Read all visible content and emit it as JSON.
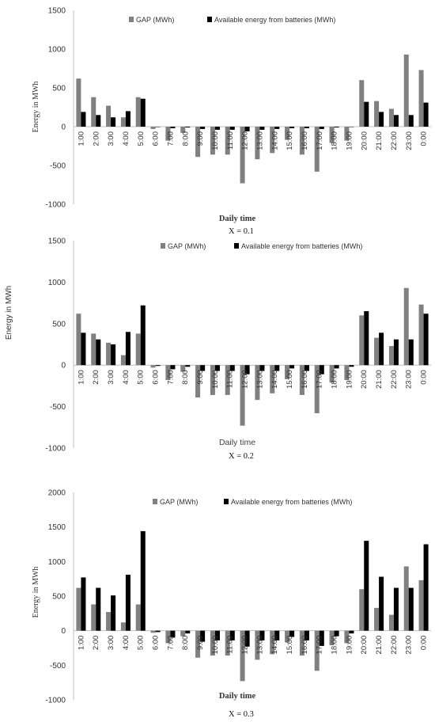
{
  "chart_data": [
    {
      "type": "bar",
      "categories": [
        "1:00",
        "2:00",
        "3:00",
        "4:00",
        "5:00",
        "6:00",
        "7:00",
        "8:00",
        "9:00",
        "10:00",
        "11:00",
        "12:00",
        "13:00",
        "14:00",
        "15:00",
        "16:00",
        "17:00",
        "18:00",
        "19:00",
        "20:00",
        "21:00",
        "22:00",
        "23:00",
        "0:00"
      ],
      "series": [
        {
          "name": "GAP (MWh)",
          "color": "#808080",
          "values": [
            620,
            380,
            270,
            120,
            380,
            -30,
            -180,
            -80,
            -390,
            -360,
            -360,
            -730,
            -420,
            -340,
            -170,
            -360,
            -580,
            -210,
            -180,
            600,
            330,
            230,
            930,
            730
          ]
        },
        {
          "name": "Available energy from batteries (MWh)",
          "color": "#000000",
          "values": [
            190,
            150,
            120,
            200,
            360,
            0,
            -20,
            -10,
            -30,
            -40,
            -40,
            -60,
            -40,
            -30,
            -20,
            -20,
            -30,
            -10,
            0,
            320,
            190,
            150,
            150,
            310
          ]
        }
      ],
      "ylim": [
        -1000,
        1500
      ],
      "yticks": [
        -1000,
        -500,
        0,
        500,
        1000,
        1500
      ],
      "ylabel": "Energy in MWh",
      "xlabel": "Daily time",
      "caption": "X = 0.1",
      "legend": "top"
    },
    {
      "type": "bar",
      "categories": [
        "1:00",
        "2:00",
        "3:00",
        "4:00",
        "5:00",
        "6:00",
        "7:00",
        "8:00",
        "9:00",
        "10:00",
        "11:00",
        "12:00",
        "13:00",
        "14:00",
        "15:00",
        "16:00",
        "17:00",
        "18:00",
        "19:00",
        "20:00",
        "21:00",
        "22:00",
        "23:00",
        "0:00"
      ],
      "series": [
        {
          "name": "GAP (MWh)",
          "color": "#808080",
          "values": [
            620,
            380,
            270,
            120,
            380,
            -30,
            -180,
            -80,
            -390,
            -360,
            -360,
            -730,
            -420,
            -340,
            -170,
            -360,
            -580,
            -210,
            -180,
            600,
            330,
            230,
            930,
            730
          ]
        },
        {
          "name": "Available energy from batteries (MWh)",
          "color": "#000000",
          "values": [
            390,
            310,
            250,
            400,
            720,
            -10,
            -50,
            -20,
            -70,
            -70,
            -70,
            -110,
            -70,
            -70,
            -40,
            -70,
            -110,
            -40,
            -20,
            650,
            390,
            310,
            310,
            620
          ]
        }
      ],
      "ylim": [
        -1000,
        1500
      ],
      "yticks": [
        -1000,
        -500,
        0,
        500,
        1000,
        1500
      ],
      "ylabel": "Energy in MWh",
      "xlabel": "Daily time",
      "caption": "X = 0.2",
      "legend": "top"
    },
    {
      "type": "bar",
      "categories": [
        "1:00",
        "2:00",
        "3:00",
        "4:00",
        "5:00",
        "6:00",
        "7:00",
        "8:00",
        "9:00",
        "10:00",
        "11:00",
        "12:00",
        "13:00",
        "14:00",
        "15:00",
        "16:00",
        "17:00",
        "18:00",
        "19:00",
        "20:00",
        "21:00",
        "22:00",
        "23:00",
        "0:00"
      ],
      "series": [
        {
          "name": "GAP (MWh)",
          "color": "#808080",
          "values": [
            620,
            380,
            270,
            120,
            380,
            -30,
            -180,
            -80,
            -390,
            -360,
            -360,
            -730,
            -420,
            -340,
            -170,
            -360,
            -580,
            -210,
            -180,
            600,
            330,
            230,
            930,
            730
          ]
        },
        {
          "name": "Available energy from batteries (MWh)",
          "color": "#000000",
          "values": [
            770,
            620,
            510,
            810,
            1440,
            -20,
            -100,
            -40,
            -160,
            -140,
            -140,
            -230,
            -140,
            -140,
            -90,
            -140,
            -220,
            -80,
            -40,
            1300,
            780,
            620,
            620,
            1250
          ]
        }
      ],
      "ylim": [
        -1000,
        2000
      ],
      "yticks": [
        -1000,
        -500,
        0,
        500,
        1000,
        1500,
        2000
      ],
      "ylabel": "Energy in MWh",
      "xlabel": "Daily time",
      "caption": "X = 0.3",
      "legend": "top"
    }
  ]
}
